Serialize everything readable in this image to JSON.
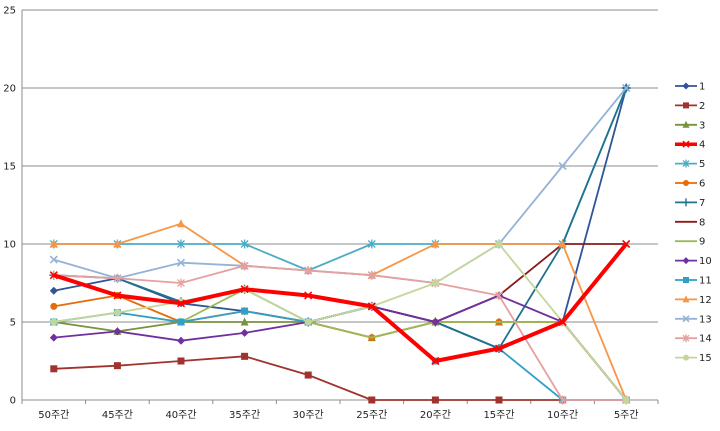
{
  "chart_data": {
    "type": "line",
    "title": "",
    "xlabel": "",
    "ylabel": "",
    "ylim": [
      0,
      25
    ],
    "yticks": [
      0,
      5,
      10,
      15,
      20,
      25
    ],
    "grid": "horizontal",
    "legend_position": "right",
    "categories": [
      "50주간",
      "45주간",
      "40주간",
      "35주간",
      "30주간",
      "25주간",
      "20주간",
      "15주간",
      "10주간",
      "5주간"
    ],
    "series": [
      {
        "name": "1",
        "color": "#2F5597",
        "marker": "diamond",
        "values": [
          7,
          7.8,
          6.2,
          5.7,
          5,
          6,
          5,
          3.3,
          5,
          20
        ]
      },
      {
        "name": "2",
        "color": "#A0332D",
        "marker": "square",
        "values": [
          2,
          2.2,
          2.5,
          2.8,
          1.6,
          0,
          0,
          0,
          0,
          0
        ]
      },
      {
        "name": "3",
        "color": "#77933C",
        "marker": "triangle",
        "values": [
          5,
          4.4,
          5,
          5,
          5,
          4,
          5,
          5,
          5,
          0
        ]
      },
      {
        "name": "4",
        "color": "#FF0000",
        "marker": "x",
        "values": [
          8,
          6.7,
          6.2,
          7.1,
          6.7,
          6,
          2.5,
          3.3,
          5,
          10
        ],
        "emphasis": true
      },
      {
        "name": "5",
        "color": "#4BACC6",
        "marker": "star",
        "values": [
          10,
          10,
          10,
          10,
          8.3,
          10,
          10,
          10,
          10,
          20
        ]
      },
      {
        "name": "6",
        "color": "#E46C0A",
        "marker": "circle",
        "values": [
          6,
          6.7,
          5,
          5.7,
          5,
          4,
          5,
          5,
          5,
          0
        ]
      },
      {
        "name": "7",
        "color": "#1F7391",
        "marker": "plus",
        "values": [
          8,
          7.8,
          6.3,
          7.1,
          5,
          6,
          5,
          3.3,
          10,
          20
        ]
      },
      {
        "name": "8",
        "color": "#8B1A1A",
        "marker": "none",
        "values": [
          8,
          6.7,
          6.2,
          7.1,
          6.7,
          6,
          5,
          6.7,
          10,
          10
        ]
      },
      {
        "name": "9",
        "color": "#9BBB59",
        "marker": "none",
        "values": [
          5,
          5.6,
          5,
          7.1,
          5,
          4,
          5,
          5,
          5,
          0
        ]
      },
      {
        "name": "10",
        "color": "#7030A0",
        "marker": "diamond",
        "values": [
          4,
          4.4,
          3.8,
          4.3,
          5,
          6,
          5,
          6.7,
          5,
          0
        ]
      },
      {
        "name": "11",
        "color": "#31A0C8",
        "marker": "square",
        "values": [
          5,
          5.6,
          5,
          5.7,
          5,
          6,
          2.5,
          3.3,
          0,
          0
        ]
      },
      {
        "name": "12",
        "color": "#F79646",
        "marker": "triangle",
        "values": [
          10,
          10,
          11.3,
          8.6,
          8.3,
          8,
          10,
          10,
          10,
          0
        ]
      },
      {
        "name": "13",
        "color": "#95B3D7",
        "marker": "x",
        "values": [
          9,
          7.8,
          8.8,
          8.6,
          8.3,
          8,
          7.5,
          10,
          15,
          20
        ]
      },
      {
        "name": "14",
        "color": "#E6A0A0",
        "marker": "star",
        "values": [
          8,
          7.8,
          7.5,
          8.6,
          8.3,
          8,
          7.5,
          6.7,
          0,
          0
        ]
      },
      {
        "name": "15",
        "color": "#C4D79B",
        "marker": "circle",
        "values": [
          5,
          5.6,
          6.3,
          7.1,
          5,
          6,
          7.5,
          10,
          5,
          0
        ]
      }
    ]
  }
}
